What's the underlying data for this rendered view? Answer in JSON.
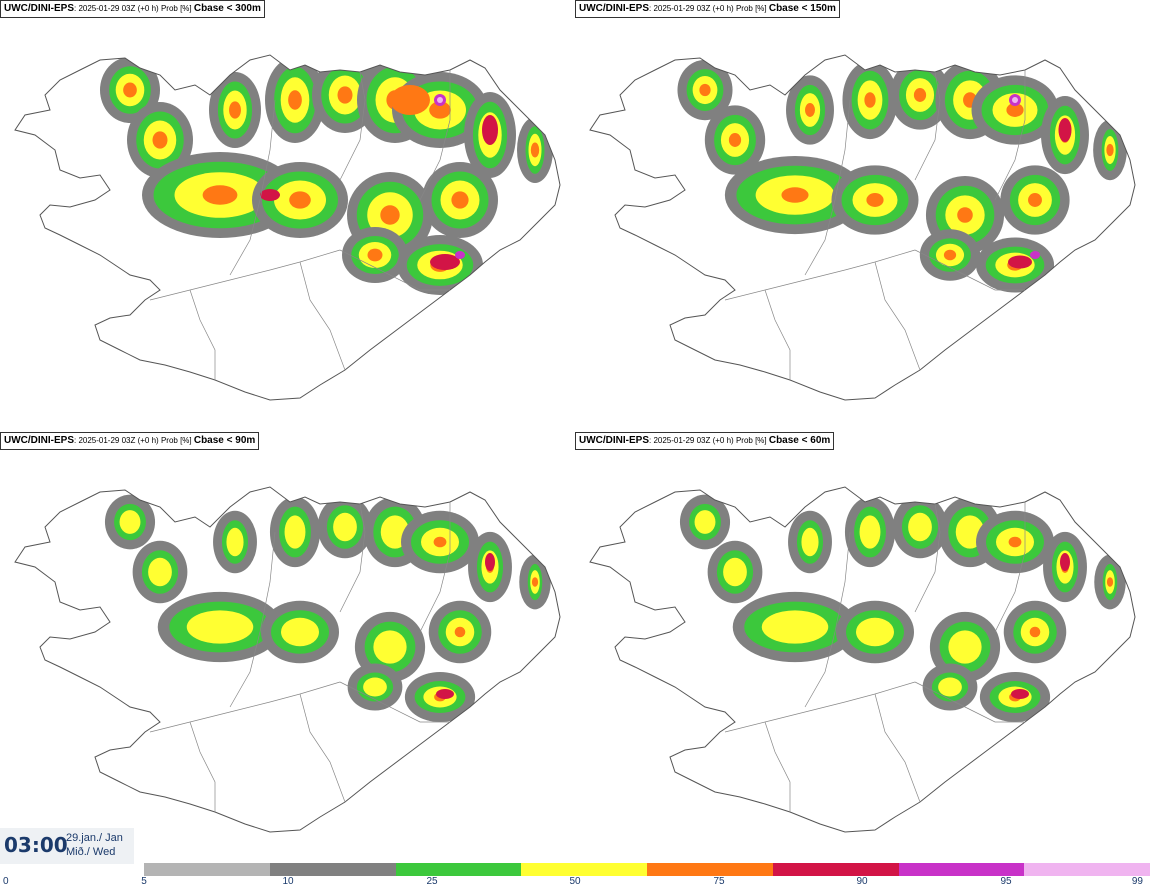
{
  "panels": [
    {
      "source": "UWC/DINI-EPS",
      "meta": ": 2025-01-29 03Z (+0 h) Prob [%] ",
      "threshold": "Cbase < 300m",
      "level": 4
    },
    {
      "source": "UWC/DINI-EPS",
      "meta": ": 2025-01-29 03Z (+0 h) Prob [%] ",
      "threshold": "Cbase < 150m",
      "level": 3
    },
    {
      "source": "UWC/DINI-EPS",
      "meta": ": 2025-01-29 03Z (+0 h) Prob [%] ",
      "threshold": "Cbase < 90m",
      "level": 2
    },
    {
      "source": "UWC/DINI-EPS",
      "meta": ": 2025-01-29 03Z (+0 h) Prob [%] ",
      "threshold": "Cbase < 60m",
      "level": 2
    }
  ],
  "timestamp": {
    "time": "03:00",
    "date_line1": "29.jan./ Jan",
    "date_line2": "Mið./ Wed"
  },
  "legend": {
    "ticks": [
      "0",
      "5",
      "10",
      "25",
      "50",
      "75",
      "90",
      "95",
      "99"
    ],
    "colors": [
      "#b4b4b4",
      "#808080",
      "#3cc83c",
      "#ffff32",
      "#ff7814",
      "#d21446",
      "#c832c8",
      "#f0b4f0"
    ]
  },
  "colors": {
    "outline": "#555555",
    "label_text": "#1b3a6b"
  }
}
